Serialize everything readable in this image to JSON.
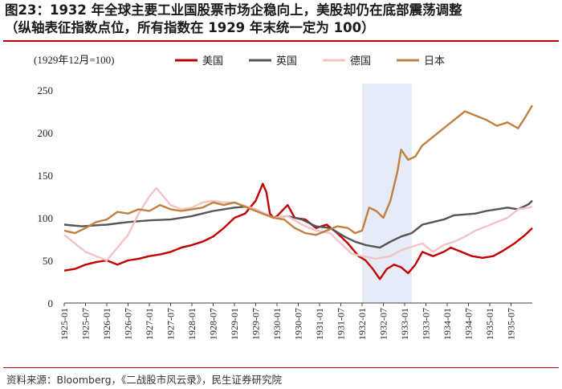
{
  "figure": {
    "title_line1": "图23：1932 年全球主要工业国股票市场企稳向上，美股却仍在底部震荡调整",
    "title_line2": "（纵轴表征指数点位，所有指数在 1929 年末统一定为 100）",
    "source": "资料来源：Bloomberg，《二战股市风云录》，民生证券研究院"
  },
  "chart_data": {
    "type": "line",
    "unit_label": "(1929年12月=100)",
    "ylim": [
      0,
      250
    ],
    "yticks": [
      0,
      50,
      100,
      150,
      200,
      250
    ],
    "xlim": [
      "1925-01",
      "1936-01"
    ],
    "xticks": [
      "1925-01",
      "1925-07",
      "1926-01",
      "1926-07",
      "1927-01",
      "1927-07",
      "1928-01",
      "1928-07",
      "1929-01",
      "1929-07",
      "1930-01",
      "1930-07",
      "1931-01",
      "1931-07",
      "1932-01",
      "1932-07",
      "1933-01",
      "1933-07",
      "1934-01",
      "1934-07",
      "1935-01",
      "1935-07"
    ],
    "shaded_region": [
      "1932-01",
      "1933-03"
    ],
    "shaded_color": "#e6ebf7",
    "legend_position": "top",
    "grid": false,
    "series": [
      {
        "name": "美国",
        "color": "#c00000",
        "points": [
          [
            "1925-01",
            38
          ],
          [
            "1925-04",
            40
          ],
          [
            "1925-07",
            45
          ],
          [
            "1925-10",
            48
          ],
          [
            "1926-01",
            50
          ],
          [
            "1926-04",
            45
          ],
          [
            "1926-07",
            50
          ],
          [
            "1926-10",
            52
          ],
          [
            "1927-01",
            55
          ],
          [
            "1927-04",
            57
          ],
          [
            "1927-07",
            60
          ],
          [
            "1927-10",
            65
          ],
          [
            "1928-01",
            68
          ],
          [
            "1928-04",
            72
          ],
          [
            "1928-07",
            78
          ],
          [
            "1928-10",
            88
          ],
          [
            "1929-01",
            100
          ],
          [
            "1929-04",
            105
          ],
          [
            "1929-07",
            120
          ],
          [
            "1929-09",
            140
          ],
          [
            "1929-10",
            130
          ],
          [
            "1929-11",
            105
          ],
          [
            "1929-12",
            100
          ],
          [
            "1930-01",
            102
          ],
          [
            "1930-04",
            115
          ],
          [
            "1930-06",
            100
          ],
          [
            "1930-09",
            98
          ],
          [
            "1930-12",
            88
          ],
          [
            "1931-03",
            92
          ],
          [
            "1931-06",
            82
          ],
          [
            "1931-09",
            70
          ],
          [
            "1931-12",
            55
          ],
          [
            "1932-02",
            50
          ],
          [
            "1932-04",
            40
          ],
          [
            "1932-06",
            28
          ],
          [
            "1932-08",
            40
          ],
          [
            "1932-10",
            45
          ],
          [
            "1932-12",
            42
          ],
          [
            "1933-02",
            35
          ],
          [
            "1933-04",
            45
          ],
          [
            "1933-06",
            60
          ],
          [
            "1933-09",
            55
          ],
          [
            "1933-12",
            60
          ],
          [
            "1934-02",
            65
          ],
          [
            "1934-05",
            60
          ],
          [
            "1934-08",
            55
          ],
          [
            "1934-11",
            53
          ],
          [
            "1935-02",
            55
          ],
          [
            "1935-05",
            62
          ],
          [
            "1935-08",
            70
          ],
          [
            "1935-11",
            80
          ],
          [
            "1936-01",
            88
          ]
        ]
      },
      {
        "name": "英国",
        "color": "#555555",
        "points": [
          [
            "1925-01",
            92
          ],
          [
            "1925-06",
            90
          ],
          [
            "1926-01",
            92
          ],
          [
            "1926-07",
            95
          ],
          [
            "1927-01",
            97
          ],
          [
            "1927-07",
            98
          ],
          [
            "1928-01",
            102
          ],
          [
            "1928-07",
            108
          ],
          [
            "1929-01",
            112
          ],
          [
            "1929-04",
            113
          ],
          [
            "1929-07",
            110
          ],
          [
            "1929-12",
            100
          ],
          [
            "1930-04",
            102
          ],
          [
            "1930-08",
            98
          ],
          [
            "1930-12",
            90
          ],
          [
            "1931-04",
            88
          ],
          [
            "1931-08",
            78
          ],
          [
            "1931-11",
            72
          ],
          [
            "1932-02",
            68
          ],
          [
            "1932-06",
            65
          ],
          [
            "1932-09",
            72
          ],
          [
            "1932-12",
            78
          ],
          [
            "1933-03",
            82
          ],
          [
            "1933-06",
            92
          ],
          [
            "1933-09",
            95
          ],
          [
            "1933-12",
            98
          ],
          [
            "1934-03",
            103
          ],
          [
            "1934-06",
            104
          ],
          [
            "1934-09",
            105
          ],
          [
            "1934-12",
            108
          ],
          [
            "1935-03",
            110
          ],
          [
            "1935-06",
            112
          ],
          [
            "1935-09",
            110
          ],
          [
            "1935-12",
            116
          ],
          [
            "1936-01",
            120
          ]
        ]
      },
      {
        "name": "德国",
        "color": "#f2c4c4",
        "points": [
          [
            "1925-01",
            80
          ],
          [
            "1925-04",
            70
          ],
          [
            "1925-07",
            60
          ],
          [
            "1925-10",
            55
          ],
          [
            "1926-01",
            50
          ],
          [
            "1926-04",
            65
          ],
          [
            "1926-07",
            80
          ],
          [
            "1926-10",
            105
          ],
          [
            "1927-01",
            125
          ],
          [
            "1927-03",
            135
          ],
          [
            "1927-05",
            125
          ],
          [
            "1927-07",
            115
          ],
          [
            "1927-10",
            110
          ],
          [
            "1928-01",
            112
          ],
          [
            "1928-04",
            118
          ],
          [
            "1928-07",
            120
          ],
          [
            "1928-10",
            118
          ],
          [
            "1929-01",
            118
          ],
          [
            "1929-07",
            110
          ],
          [
            "1929-12",
            100
          ],
          [
            "1930-04",
            102
          ],
          [
            "1930-08",
            92
          ],
          [
            "1930-12",
            85
          ],
          [
            "1931-04",
            82
          ],
          [
            "1931-07",
            70
          ],
          [
            "1931-10",
            58
          ],
          [
            "1932-01",
            55
          ],
          [
            "1932-05",
            52
          ],
          [
            "1932-09",
            55
          ],
          [
            "1932-12",
            62
          ],
          [
            "1933-03",
            66
          ],
          [
            "1933-06",
            70
          ],
          [
            "1933-09",
            60
          ],
          [
            "1933-12",
            68
          ],
          [
            "1934-03",
            72
          ],
          [
            "1934-06",
            78
          ],
          [
            "1934-09",
            85
          ],
          [
            "1934-12",
            90
          ],
          [
            "1935-03",
            95
          ],
          [
            "1935-06",
            100
          ],
          [
            "1935-09",
            110
          ],
          [
            "1935-12",
            112
          ],
          [
            "1936-01",
            113
          ]
        ]
      },
      {
        "name": "日本",
        "color": "#c08040",
        "points": [
          [
            "1925-01",
            85
          ],
          [
            "1925-04",
            82
          ],
          [
            "1925-07",
            88
          ],
          [
            "1925-10",
            95
          ],
          [
            "1926-01",
            98
          ],
          [
            "1926-04",
            107
          ],
          [
            "1926-07",
            105
          ],
          [
            "1926-10",
            110
          ],
          [
            "1927-01",
            108
          ],
          [
            "1927-04",
            115
          ],
          [
            "1927-07",
            110
          ],
          [
            "1927-10",
            108
          ],
          [
            "1928-01",
            110
          ],
          [
            "1928-04",
            112
          ],
          [
            "1928-07",
            118
          ],
          [
            "1928-10",
            115
          ],
          [
            "1929-01",
            118
          ],
          [
            "1929-07",
            108
          ],
          [
            "1929-12",
            100
          ],
          [
            "1930-03",
            98
          ],
          [
            "1930-06",
            88
          ],
          [
            "1930-09",
            82
          ],
          [
            "1930-12",
            80
          ],
          [
            "1931-03",
            85
          ],
          [
            "1931-06",
            90
          ],
          [
            "1931-09",
            88
          ],
          [
            "1931-11",
            82
          ],
          [
            "1932-01",
            85
          ],
          [
            "1932-03",
            112
          ],
          [
            "1932-05",
            108
          ],
          [
            "1932-07",
            100
          ],
          [
            "1932-09",
            120
          ],
          [
            "1932-11",
            155
          ],
          [
            "1932-12",
            180
          ],
          [
            "1933-02",
            168
          ],
          [
            "1933-04",
            172
          ],
          [
            "1933-06",
            185
          ],
          [
            "1933-09",
            195
          ],
          [
            "1933-12",
            205
          ],
          [
            "1934-03",
            215
          ],
          [
            "1934-06",
            225
          ],
          [
            "1934-09",
            220
          ],
          [
            "1934-12",
            215
          ],
          [
            "1935-03",
            208
          ],
          [
            "1935-06",
            212
          ],
          [
            "1935-09",
            205
          ],
          [
            "1935-11",
            218
          ],
          [
            "1936-01",
            232
          ]
        ]
      }
    ]
  }
}
